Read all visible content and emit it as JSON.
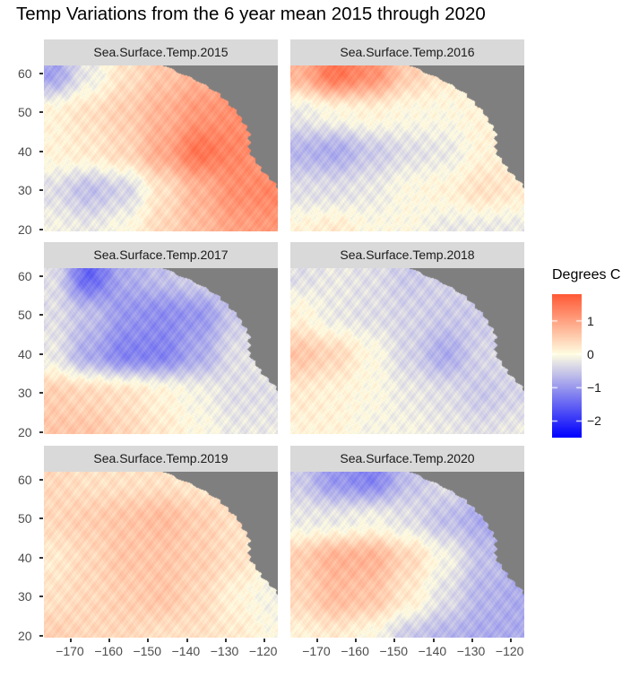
{
  "chart_data": {
    "type": "heatmap",
    "title": "Temp Variations from the 6 year mean 2015 through 2020",
    "xlim": [
      -177,
      -116.5
    ],
    "ylim": [
      19.5,
      62
    ],
    "x_ticks": [
      -170,
      -160,
      -150,
      -140,
      -130,
      -120
    ],
    "x_tick_labels": [
      "−170",
      "−160",
      "−150",
      "−140",
      "−130",
      "−120"
    ],
    "y_ticks": [
      20,
      30,
      40,
      50,
      60
    ],
    "y_tick_labels": [
      "20",
      "30",
      "40",
      "50",
      "60"
    ],
    "grid": false,
    "land_color": "#7f7f7f",
    "grid_lons": [
      -175,
      -165,
      -155,
      -145,
      -135,
      -125,
      -118
    ],
    "grid_lats": [
      60,
      50,
      40,
      30,
      20
    ],
    "coastline": [
      [
        62,
        -146
      ],
      [
        58,
        -137
      ],
      [
        55,
        -132
      ],
      [
        50,
        -127
      ],
      [
        45,
        -124
      ],
      [
        40,
        -124
      ],
      [
        35,
        -120.5
      ],
      [
        32,
        -117.5
      ],
      [
        29,
        -115
      ]
    ],
    "legend": {
      "title": "Degrees C",
      "position": "right",
      "range": [
        -2.5,
        1.8
      ],
      "ticks": [
        1,
        0,
        -1,
        -2
      ],
      "tick_labels": [
        "1",
        "0",
        "−1",
        "−2"
      ],
      "colors": {
        "low": "#0000ff",
        "mid": "#fffde2",
        "high": "#ff5a36"
      }
    },
    "facets": [
      {
        "label": "Sea.Surface.Temp.2015",
        "values": [
          [
            -0.9,
            -0.2,
            0.3,
            0.6,
            0.8,
            0.9,
            1.0
          ],
          [
            0.1,
            0.3,
            0.5,
            0.8,
            1.1,
            1.2,
            1.2
          ],
          [
            0.1,
            0.2,
            0.4,
            0.9,
            1.5,
            1.3,
            1.0
          ],
          [
            -0.3,
            -0.6,
            -0.4,
            0.3,
            0.8,
            1.2,
            1.3
          ],
          [
            -0.1,
            -0.2,
            0.0,
            0.4,
            0.7,
            1.0,
            1.1
          ]
        ]
      },
      {
        "label": "Sea.Surface.Temp.2016",
        "values": [
          [
            0.8,
            1.5,
            1.2,
            0.5,
            0.2,
            0.2,
            0.2
          ],
          [
            -0.2,
            0.0,
            0.1,
            0.0,
            0.0,
            0.1,
            0.1
          ],
          [
            -0.7,
            -0.8,
            -0.5,
            -0.3,
            -0.2,
            0.1,
            0.2
          ],
          [
            -0.3,
            -0.3,
            -0.2,
            0.0,
            0.1,
            0.3,
            0.2
          ],
          [
            0.1,
            0.2,
            0.0,
            0.0,
            -0.2,
            -0.2,
            -0.2
          ]
        ]
      },
      {
        "label": "Sea.Surface.Temp.2017",
        "values": [
          [
            -0.3,
            -1.5,
            -0.8,
            -0.6,
            -0.4,
            -0.4,
            -0.4
          ],
          [
            -0.3,
            -0.6,
            -1.0,
            -1.1,
            -1.0,
            -0.5,
            -0.4
          ],
          [
            -0.2,
            -0.8,
            -1.2,
            -1.2,
            -0.8,
            -0.3,
            -0.2
          ],
          [
            0.5,
            0.4,
            0.3,
            0.1,
            -0.1,
            -0.3,
            -0.3
          ],
          [
            0.6,
            0.6,
            0.4,
            0.2,
            0.0,
            -0.2,
            -0.2
          ]
        ]
      },
      {
        "label": "Sea.Surface.Temp.2018",
        "values": [
          [
            -0.3,
            -0.2,
            -0.3,
            -0.5,
            -0.4,
            -0.4,
            -0.4
          ],
          [
            0.1,
            -0.2,
            -0.3,
            -0.4,
            -0.5,
            -0.5,
            -0.5
          ],
          [
            0.6,
            0.4,
            0.0,
            -0.4,
            -0.8,
            -0.4,
            -0.3
          ],
          [
            0.2,
            0.1,
            0.0,
            -0.2,
            -0.3,
            -0.5,
            -0.4
          ],
          [
            0.1,
            0.1,
            -0.1,
            -0.1,
            -0.2,
            -0.3,
            -0.2
          ]
        ]
      },
      {
        "label": "Sea.Surface.Temp.2019",
        "values": [
          [
            0.4,
            0.3,
            0.3,
            0.3,
            0.2,
            0.2,
            0.2
          ],
          [
            0.4,
            0.5,
            0.6,
            0.7,
            0.5,
            0.3,
            0.3
          ],
          [
            0.2,
            0.4,
            0.6,
            0.6,
            0.5,
            0.3,
            0.1
          ],
          [
            0.3,
            0.4,
            0.5,
            0.6,
            0.4,
            0.1,
            -0.1
          ],
          [
            0.5,
            0.4,
            0.4,
            0.3,
            0.3,
            0.2,
            0.0
          ]
        ]
      },
      {
        "label": "Sea.Surface.Temp.2020",
        "values": [
          [
            -0.5,
            -1.0,
            -1.2,
            -0.6,
            -0.3,
            -0.3,
            -0.3
          ],
          [
            -0.2,
            -0.2,
            -0.1,
            -0.3,
            -0.6,
            -0.8,
            -0.8
          ],
          [
            0.5,
            0.8,
            0.8,
            0.4,
            -0.1,
            -0.6,
            -0.7
          ],
          [
            0.4,
            0.7,
            0.6,
            0.2,
            -0.3,
            -0.7,
            -0.8
          ],
          [
            0.1,
            0.2,
            0.0,
            -0.5,
            -0.7,
            -0.8,
            -0.8
          ]
        ]
      }
    ]
  }
}
